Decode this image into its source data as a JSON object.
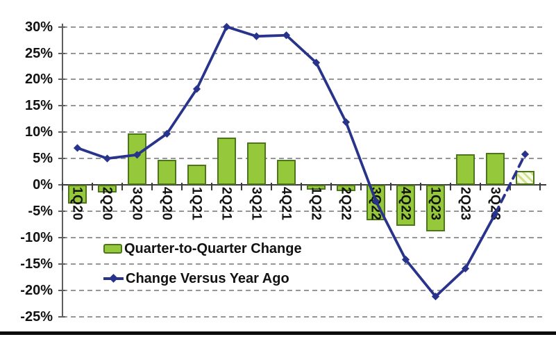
{
  "chart_data": {
    "type": "bar+line combo",
    "title": "",
    "xlabel": "",
    "ylabel": "",
    "categories": [
      "1Q20",
      "2Q20",
      "3Q20",
      "4Q20",
      "1Q21",
      "2Q21",
      "3Q21",
      "4Q21",
      "1Q22",
      "2Q22",
      "3Q22",
      "4Q22",
      "1Q23",
      "2Q23",
      "3Q23",
      ""
    ],
    "series": [
      {
        "name": "Quarter-to-Quarter Change",
        "type": "bar",
        "values": [
          -3.6,
          -1.4,
          9.7,
          4.7,
          3.8,
          9.0,
          8.0,
          4.8,
          -0.9,
          -1.2,
          -6.7,
          -7.8,
          -8.9,
          5.8,
          6.1,
          2.7
        ],
        "last_bar_style": "hatched-forecast"
      },
      {
        "name": "Change Versus Year Ago",
        "type": "line",
        "marker": "diamond",
        "values": [
          7.0,
          5.0,
          5.7,
          9.7,
          18.2,
          30.0,
          28.2,
          28.4,
          23.2,
          11.9,
          -3.1,
          -14.2,
          -21.2,
          -15.9,
          -5.5,
          5.8
        ],
        "dashed_segment_from_index": 14
      }
    ],
    "ylim": [
      -25,
      30
    ],
    "ytick_step": 5,
    "y_ticks": [
      "30%",
      "25%",
      "20%",
      "15%",
      "10%",
      "5%",
      "0%",
      "-5%",
      "-10%",
      "-15%",
      "-20%",
      "-25%"
    ],
    "grid": "horizontal dashed gray lines at each 5% level",
    "legend_position": "inside lower-left, no border"
  },
  "legend": {
    "bar_label": "Quarter-to-Quarter Change",
    "line_label": "Change Versus Year Ago"
  },
  "colors": {
    "bar_fill": "#96C83C",
    "bar_border": "#4D761C",
    "hatch_bg": "#F8FBE6",
    "hatch_line": "#CFE08C",
    "line": "#28338C",
    "grid": "#969696",
    "axis": "#5E5E5E",
    "text": "#121212",
    "bottom_rule": "#0D0D0D"
  }
}
